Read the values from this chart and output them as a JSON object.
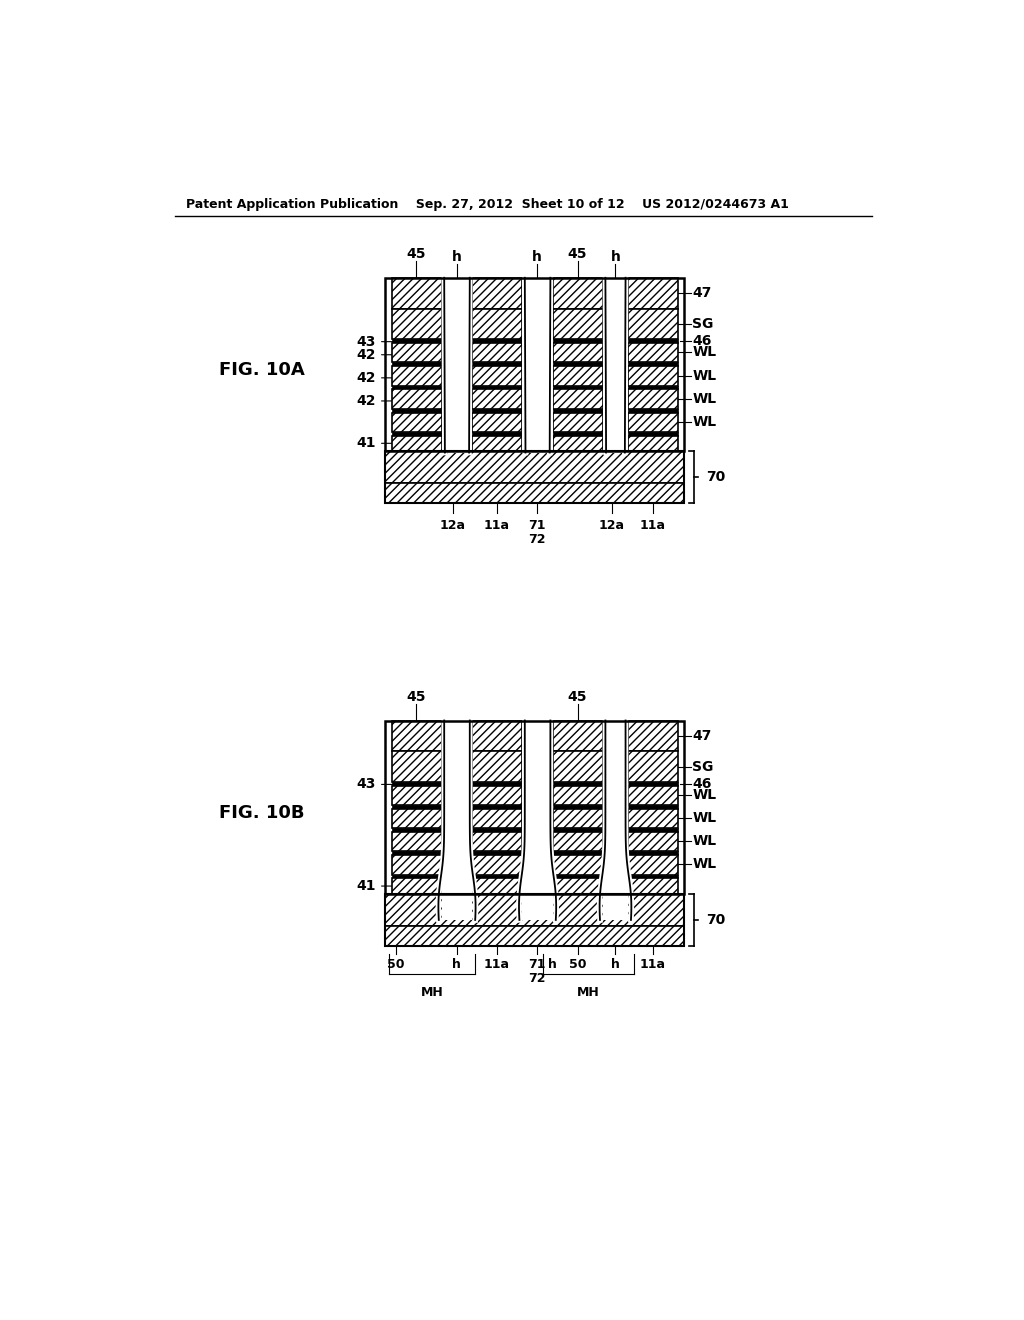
{
  "background_color": "#ffffff",
  "header_text": "Patent Application Publication    Sep. 27, 2012  Sheet 10 of 12    US 2012/0244673 A1",
  "fig_label_A": "FIG. 10A",
  "fig_label_B": "FIG. 10B",
  "line_color": "#000000"
}
